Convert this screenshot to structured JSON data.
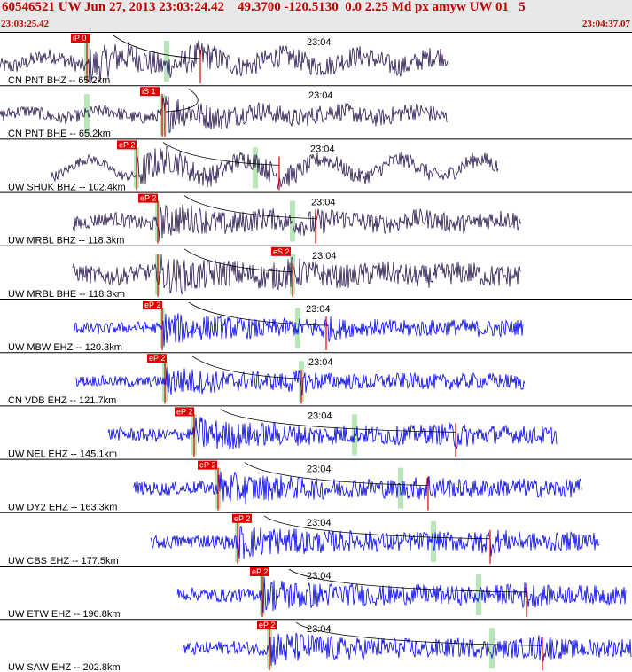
{
  "header": {
    "title": "60546521 UW Jun 27, 2013 23:03:24.42    49.3700 -120.5130  0.0 2.25 Md px amyw UW 01   5",
    "time_start": "23:03:25.42",
    "time_end": "23:04:37.07"
  },
  "colors": {
    "header_text": "#c00000",
    "broadband_trace": "#2b1650",
    "short_period_trace": "#0000ee",
    "pick_marker": "#e00000",
    "pick_window": "#b8e6b8"
  },
  "time_tick_label": "23:04",
  "channels": [
    {
      "label": "CN PNT BHZ -- 65.2km",
      "pick": "iP 0",
      "color": "broadband"
    },
    {
      "label": "CN PNT BHE -- 65.2km",
      "pick": "iS 1",
      "color": "broadband"
    },
    {
      "label": "UW SHUK BHZ -- 102.4km",
      "pick": "eP 2",
      "color": "broadband"
    },
    {
      "label": "UW MRBL BHZ -- 118.3km",
      "pick": "eP 2",
      "color": "broadband"
    },
    {
      "label": "UW MRBL BHE -- 118.3km",
      "pick": "eS 2",
      "color": "broadband"
    },
    {
      "label": "UW MBW EHZ -- 120.3km",
      "pick": "eP 2",
      "color": "short_period"
    },
    {
      "label": "CN VDB EHZ -- 121.7km",
      "pick": "eP 2",
      "color": "short_period"
    },
    {
      "label": "UW NEL EHZ -- 145.1km",
      "pick": "eP 2",
      "color": "short_period"
    },
    {
      "label": "UW DY2 EHZ -- 163.3km",
      "pick": "eP 2",
      "color": "short_period"
    },
    {
      "label": "UW CBS EHZ -- 177.5km",
      "pick": "eP 2",
      "color": "short_period"
    },
    {
      "label": "UW ETW EHZ -- 196.8km",
      "pick": "eP 2",
      "color": "short_period"
    },
    {
      "label": "UW SAW EHZ -- 202.8km",
      "pick": "eP 2",
      "color": "short_period"
    }
  ]
}
